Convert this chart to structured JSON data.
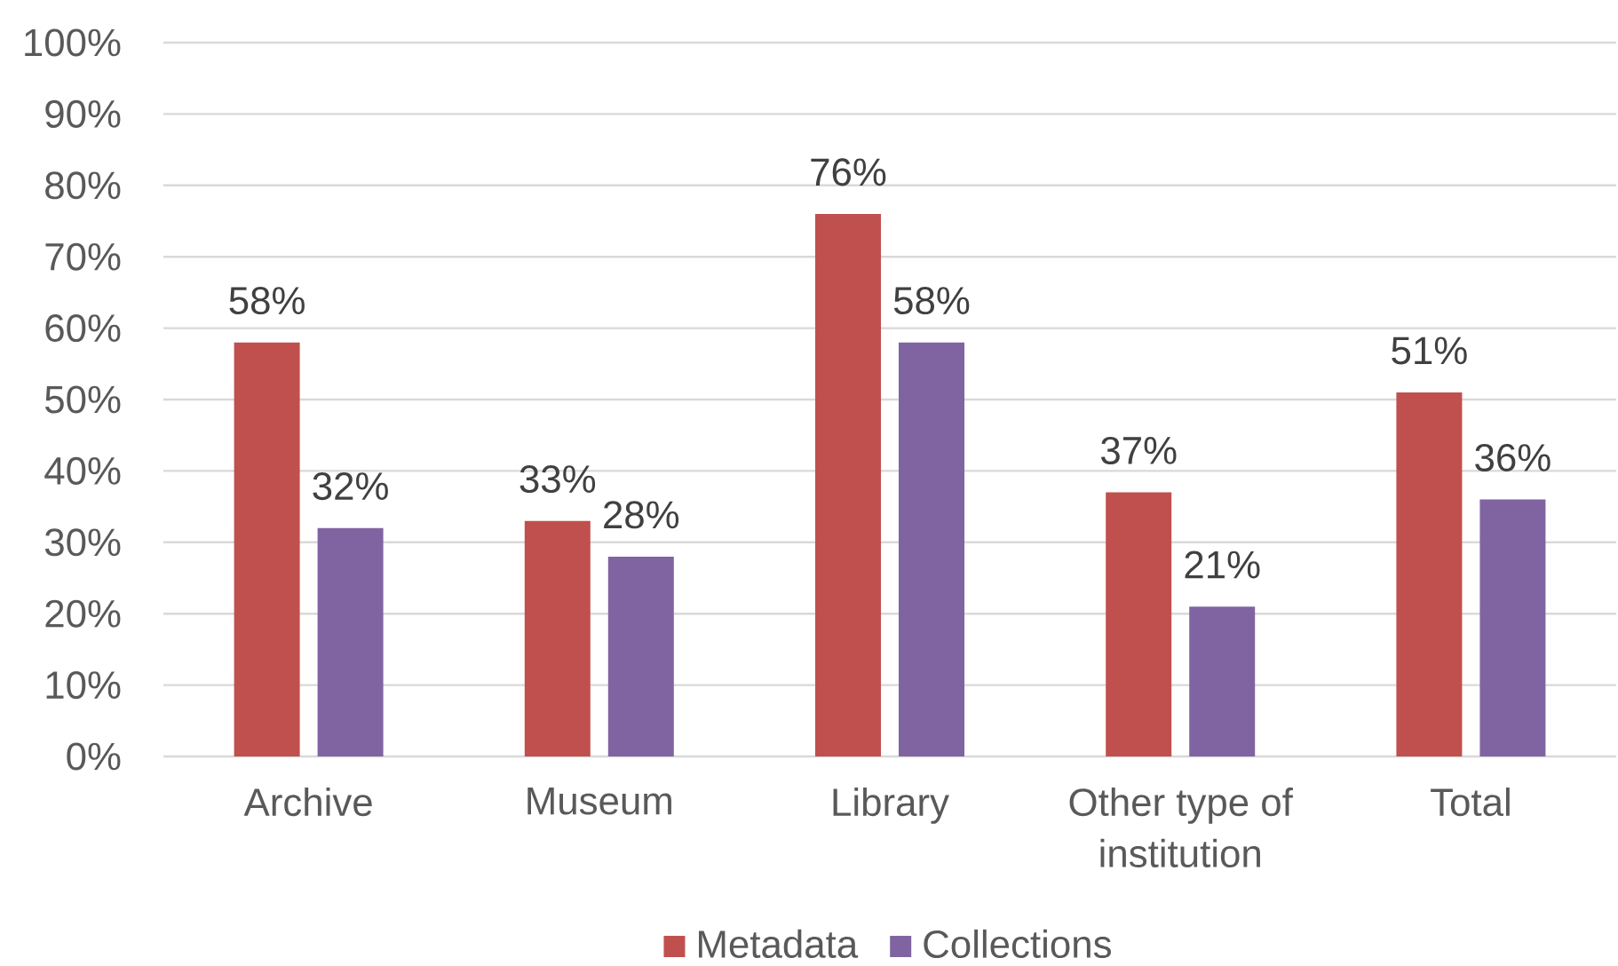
{
  "chart_data": {
    "type": "bar",
    "categories": [
      "Archive",
      "Museum",
      "Library",
      "Other type of institution",
      "Total"
    ],
    "series": [
      {
        "name": "Metadata",
        "color": "#c0504d",
        "values": [
          58,
          33,
          76,
          37,
          51
        ],
        "value_labels": [
          "58%",
          "33%",
          "76%",
          "37%",
          "51%"
        ]
      },
      {
        "name": "Collections",
        "color": "#8064a2",
        "values": [
          32,
          28,
          58,
          21,
          36
        ],
        "value_labels": [
          "32%",
          "28%",
          "58%",
          "21%",
          "36%"
        ]
      }
    ],
    "ylim": [
      0,
      100
    ],
    "yticks": [
      {
        "value": 0,
        "label": "0%"
      },
      {
        "value": 10,
        "label": "10%"
      },
      {
        "value": 20,
        "label": "20%"
      },
      {
        "value": 30,
        "label": "30%"
      },
      {
        "value": 40,
        "label": "40%"
      },
      {
        "value": 50,
        "label": "50%"
      },
      {
        "value": 60,
        "label": "60%"
      },
      {
        "value": 70,
        "label": "70%"
      },
      {
        "value": 80,
        "label": "80%"
      },
      {
        "value": 90,
        "label": "90%"
      },
      {
        "value": 100,
        "label": "100%"
      }
    ],
    "grid": "y",
    "legend": "bottom"
  }
}
